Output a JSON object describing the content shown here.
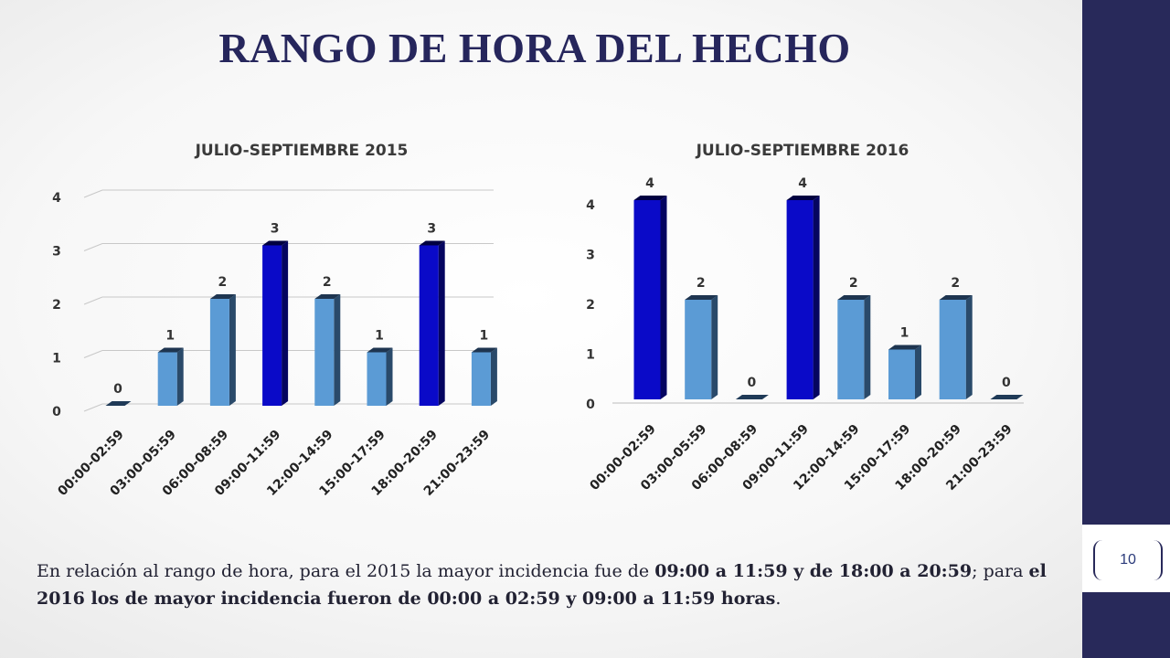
{
  "slide": {
    "title": "RANGO DE HORA DEL HECHO",
    "page_number": "10",
    "caption": {
      "p1": "En relación al rango de hora, para el 2015 la mayor incidencia fue de ",
      "b1": "09:00 a 11:59 y de 18:00 a 20:59",
      "p2": "; para ",
      "b2": "el 2016 los de mayor incidencia fueron de 00:00 a 02:59 y 09:00 a 11:59 horas",
      "p3": "."
    }
  },
  "colors": {
    "bar_normal": "#5b9bd5",
    "bar_highlight": "#0a0ac8",
    "title": "#26265c",
    "sidebar": "#28295a"
  },
  "chart_data": [
    {
      "type": "bar",
      "title": "JULIO-SEPTIEMBRE 2015",
      "categories": [
        "00:00-02:59",
        "03:00-05:59",
        "06:00-08:59",
        "09:00-11:59",
        "12:00-14:59",
        "15:00-17:59",
        "18:00-20:59",
        "21:00-23:59"
      ],
      "values": [
        0,
        1,
        2,
        3,
        2,
        1,
        3,
        1
      ],
      "highlight": [
        false,
        false,
        false,
        true,
        false,
        false,
        true,
        false
      ],
      "ylim": [
        0,
        4
      ],
      "yticks": [
        0,
        1,
        2,
        3,
        4
      ],
      "grid": true,
      "style": "3d"
    },
    {
      "type": "bar",
      "title": "JULIO-SEPTIEMBRE 2016",
      "categories": [
        "00:00-02:59",
        "03:00-05:59",
        "06:00-08:59",
        "09:00-11:59",
        "12:00-14:59",
        "15:00-17:59",
        "18:00-20:59",
        "21:00-23:59"
      ],
      "values": [
        4,
        2,
        0,
        4,
        2,
        1,
        2,
        0
      ],
      "highlight": [
        true,
        false,
        false,
        true,
        false,
        false,
        false,
        false
      ],
      "ylim": [
        0,
        4
      ],
      "yticks": [
        0,
        1,
        2,
        3,
        4
      ],
      "grid": false,
      "style": "3d"
    }
  ]
}
